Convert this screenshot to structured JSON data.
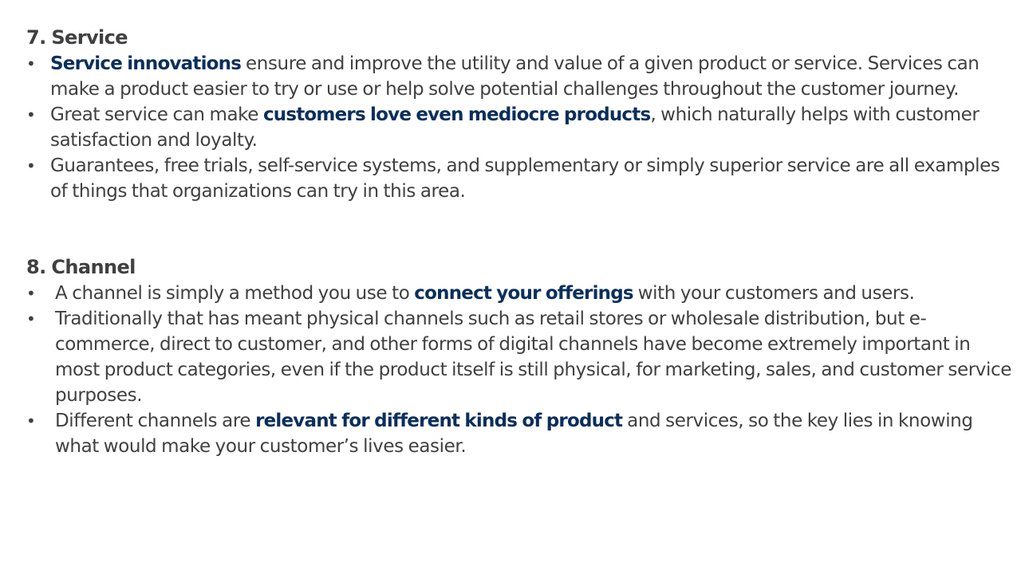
{
  "bullet_symbol": "•",
  "sections": [
    {
      "heading": "7. Service",
      "items": [
        {
          "pre": "",
          "highlight": "Service innovations",
          "post": " ensure and improve the utility and value of a given product or service. Services can make a product easier to try or use or help solve potential challenges throughout the customer journey."
        },
        {
          "pre": "Great service can make ",
          "highlight": "customers love even mediocre products",
          "post": ", which naturally helps with customer satisfaction and loyalty."
        },
        {
          "pre": "Guarantees, free trials, self-service systems, and supplementary or simply superior service are all examples of things that organizations can try in this area.",
          "highlight": "",
          "post": ""
        }
      ]
    },
    {
      "heading": "8. Channel",
      "items": [
        {
          "pre": "A channel is simply a method you use to ",
          "highlight": "connect your offerings",
          "post": " with your customers and users."
        },
        {
          "pre": "Traditionally that has meant physical channels such as retail stores or wholesale distribution, but e-commerce, direct to customer, and other forms of digital channels have become extremely important in most product categories, even if the product itself is still physical, for marketing, sales, and customer service purposes.",
          "highlight": "",
          "post": ""
        },
        {
          "pre": "Different channels are ",
          "highlight": "relevant for different kinds of product",
          "post": " and services, so the key lies in knowing what would make your customer’s lives easier."
        }
      ]
    }
  ],
  "colors": {
    "text": "#404040",
    "highlight": "#0a2f5c",
    "background": "#ffffff"
  }
}
